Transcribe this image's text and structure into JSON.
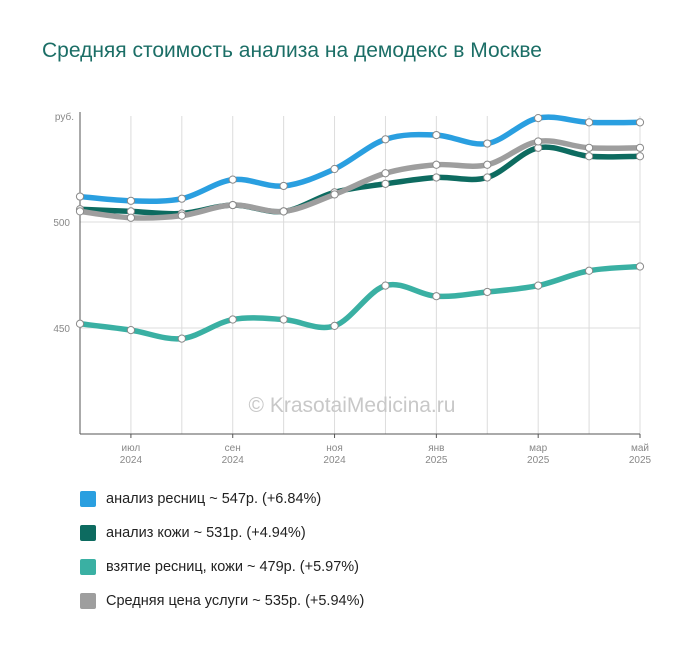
{
  "chart_data": {
    "type": "line",
    "title": "Средняя стоимость анализа на демодекс в Москве",
    "ylabel": "руб.",
    "ylim": [
      400,
      550
    ],
    "yticks": [
      450,
      500
    ],
    "grid": true,
    "watermark": "© KrasotaiMedicina.ru",
    "x": [
      "2024-06",
      "2024-07",
      "2024-08",
      "2024-09",
      "2024-10",
      "2024-11",
      "2024-12",
      "2025-01",
      "2025-02",
      "2025-03",
      "2025-04",
      "2025-05"
    ],
    "xticks": [
      {
        "month": "июл",
        "year": "2024",
        "index": 1
      },
      {
        "month": "сен",
        "year": "2024",
        "index": 3
      },
      {
        "month": "ноя",
        "year": "2024",
        "index": 5
      },
      {
        "month": "янв",
        "year": "2025",
        "index": 7
      },
      {
        "month": "мар",
        "year": "2025",
        "index": 9
      },
      {
        "month": "май",
        "year": "2025",
        "index": 11
      }
    ],
    "series": [
      {
        "name": "анализ ресниц",
        "color": "#2a9fe0",
        "legend": "анализ ресниц ~ 547р. (+6.84%)",
        "values": [
          512,
          510,
          511,
          520,
          517,
          525,
          539,
          541,
          537,
          549,
          547,
          547
        ]
      },
      {
        "name": "анализ кожи",
        "color": "#0d6b60",
        "legend": "анализ кожи ~ 531р. (+4.94%)",
        "values": [
          506,
          505,
          504,
          508,
          505,
          514,
          518,
          521,
          521,
          535,
          531,
          531
        ]
      },
      {
        "name": "взятие ресниц, кожи",
        "color": "#3ab0a3",
        "legend": "взятие ресниц, кожи ~ 479р. (+5.97%)",
        "values": [
          452,
          449,
          445,
          454,
          454,
          451,
          470,
          465,
          467,
          470,
          477,
          479
        ]
      },
      {
        "name": "Средняя цена услуги",
        "color": "#9e9e9e",
        "legend": "Средняя цена услуги ~ 535р. (+5.94%)",
        "values": [
          505,
          502,
          503,
          508,
          505,
          513,
          523,
          527,
          527,
          538,
          535,
          535
        ]
      }
    ]
  }
}
